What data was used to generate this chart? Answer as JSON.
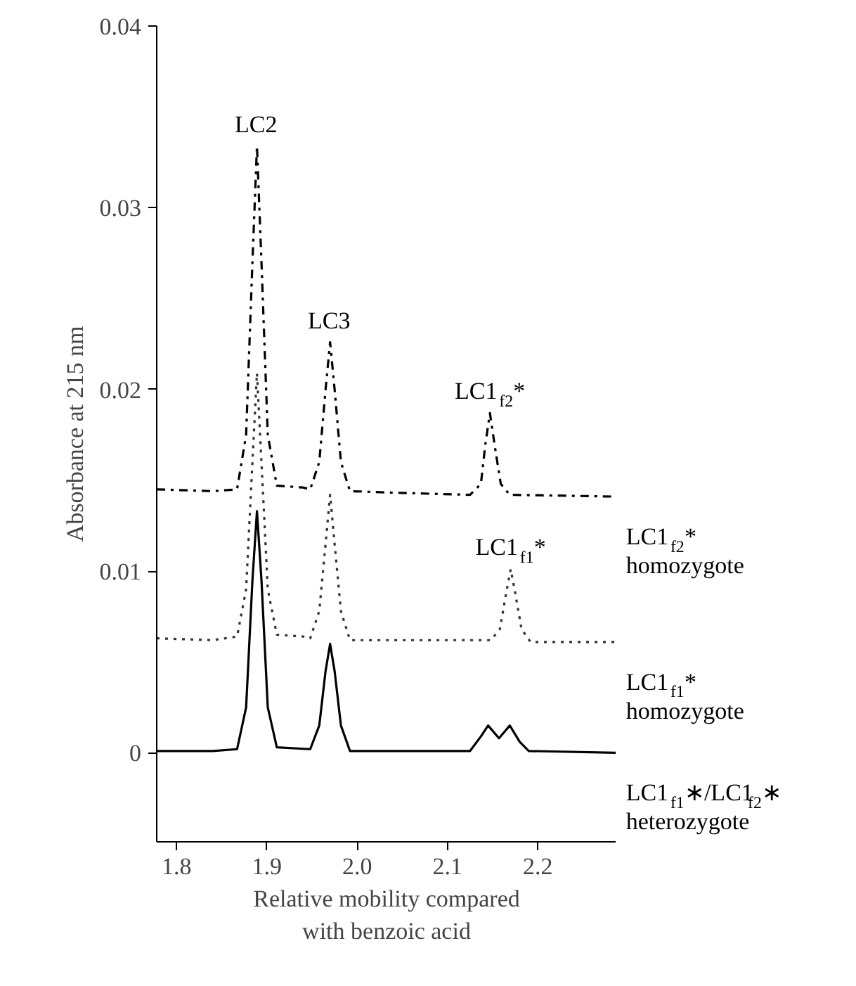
{
  "chart_data": {
    "type": "line",
    "xlabel": "Relative mobility compared\nwith benzoic acid",
    "ylabel": "Absorbance at 215 nm",
    "xlim": [
      1.778,
      2.287
    ],
    "ylim": [
      -0.0049,
      0.04
    ],
    "xticks": [
      1.8,
      1.9,
      {
        "value": 2.0,
        "label": "2.0"
      },
      2.1,
      2.2
    ],
    "yticks": [
      0,
      0.01,
      0.02,
      0.03,
      0.04
    ],
    "grid": false,
    "legend": false,
    "marker": "none",
    "series": [
      {
        "name": "LC1$_{f2}$*\nhomozygote",
        "color": "#000000",
        "line_style": "dashed",
        "x": [
          1.778,
          1.84,
          1.867,
          1.877,
          1.884,
          1.889,
          1.894,
          1.901,
          1.911,
          1.94,
          1.948,
          1.958,
          1.965,
          1.97,
          1.975,
          1.982,
          1.992,
          2.05,
          2.125,
          2.137,
          2.142,
          2.147,
          2.152,
          2.159,
          2.169,
          2.287
        ],
        "values": [
          0.0145,
          0.0144,
          0.0145,
          0.0175,
          0.027,
          0.0334,
          0.027,
          0.0175,
          0.0147,
          0.0146,
          0.0145,
          0.016,
          0.02,
          0.0226,
          0.02,
          0.016,
          0.0144,
          0.0143,
          0.0142,
          0.0148,
          0.017,
          0.0187,
          0.017,
          0.0148,
          0.0142,
          0.0141
        ]
      },
      {
        "name": "LC1$_{f1}$*\nhomozygote",
        "color": "#333333",
        "line_style": "dotted",
        "x": [
          1.778,
          1.84,
          1.867,
          1.877,
          1.884,
          1.889,
          1.894,
          1.901,
          1.911,
          1.94,
          1.948,
          1.958,
          1.965,
          1.97,
          1.975,
          1.982,
          1.992,
          2.1,
          2.148,
          2.158,
          2.165,
          2.17,
          2.175,
          2.182,
          2.192,
          2.287
        ],
        "values": [
          0.0063,
          0.0062,
          0.0064,
          0.009,
          0.016,
          0.0209,
          0.016,
          0.009,
          0.0065,
          0.0064,
          0.0063,
          0.0078,
          0.0115,
          0.0142,
          0.0115,
          0.0078,
          0.0062,
          0.0062,
          0.0062,
          0.0068,
          0.0088,
          0.0101,
          0.0088,
          0.0068,
          0.0061,
          0.0061
        ]
      },
      {
        "name": "LC1$_{f1}$∗/LC1$_{f2}$∗\nheterozygote",
        "color": "#000000",
        "line_style": "solid",
        "x": [
          1.778,
          1.84,
          1.867,
          1.877,
          1.884,
          1.889,
          1.894,
          1.901,
          1.911,
          1.948,
          1.958,
          1.965,
          1.97,
          1.975,
          1.982,
          1.992,
          2.125,
          2.137,
          2.145,
          2.157,
          2.169,
          2.18,
          2.19,
          2.287
        ],
        "values": [
          0.0001,
          0.0001,
          0.0002,
          0.0025,
          0.0095,
          0.0133,
          0.0095,
          0.0025,
          0.0003,
          0.0002,
          0.0015,
          0.0045,
          0.006,
          0.0045,
          0.0015,
          0.0001,
          0.0001,
          0.0009,
          0.0015,
          0.0008,
          0.0015,
          0.0006,
          0.0001,
          0.0
        ]
      }
    ],
    "annotations": [
      {
        "text": "LC2",
        "x": 1.889,
        "y": 0.0334
      },
      {
        "text": "LC3",
        "x": 1.97,
        "y": 0.0226
      },
      {
        "text": "LC1$_{f2}$*",
        "x": 2.147,
        "y": 0.0187
      },
      {
        "text": "LC1$_{f1}$*",
        "x": 2.17,
        "y": 0.0101
      }
    ]
  }
}
